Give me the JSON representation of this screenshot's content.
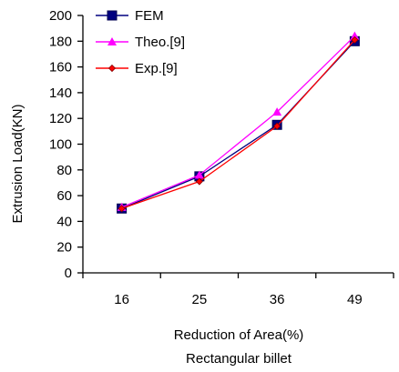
{
  "chart_data": {
    "type": "line",
    "categories": [
      "16",
      "25",
      "36",
      "49"
    ],
    "ylabel": "Extrusion Load(KN)",
    "xlabel_lines": [
      "Reduction of Area(%)",
      "Rectangular billet"
    ],
    "ylim": [
      0,
      200
    ],
    "yticks": [
      0,
      20,
      40,
      60,
      80,
      100,
      120,
      140,
      160,
      180,
      200
    ],
    "grid": false,
    "legend_position": "top-left",
    "series": [
      {
        "name": "FEM",
        "values": [
          50,
          75,
          115,
          180
        ],
        "color": "#000080",
        "marker": "square"
      },
      {
        "name": "Theo.[9]",
        "values": [
          51,
          76,
          125,
          184
        ],
        "color": "#ff00ff",
        "marker": "triangle"
      },
      {
        "name": "Exp.[9]",
        "values": [
          50,
          71,
          114,
          181
        ],
        "color": "#ff0000",
        "marker": "diamond"
      }
    ]
  }
}
